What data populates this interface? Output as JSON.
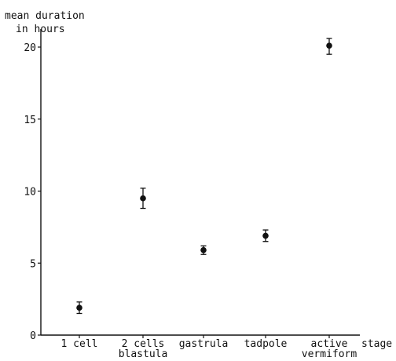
{
  "chart_data": {
    "type": "scatter",
    "ylabel_lines": [
      "mean duration",
      "in hours"
    ],
    "xlabel": "stage",
    "ylim": [
      0,
      20
    ],
    "yticks": [
      0,
      5,
      10,
      15,
      20
    ],
    "grid": false,
    "legend": "none",
    "categories": [
      [
        "1 cell"
      ],
      [
        "2 cells",
        "blastula"
      ],
      [
        "gastrula"
      ],
      [
        "tadpole"
      ],
      [
        "active",
        "vermiform"
      ]
    ],
    "series": [
      {
        "values": [
          1.9,
          9.5,
          5.9,
          6.9,
          20.1
        ],
        "error_low": [
          1.5,
          8.8,
          5.6,
          6.5,
          19.5
        ],
        "error_high": [
          2.3,
          10.2,
          6.2,
          7.3,
          20.6
        ]
      }
    ],
    "colors": {
      "marker": "#111111",
      "axis": "#111111"
    }
  }
}
